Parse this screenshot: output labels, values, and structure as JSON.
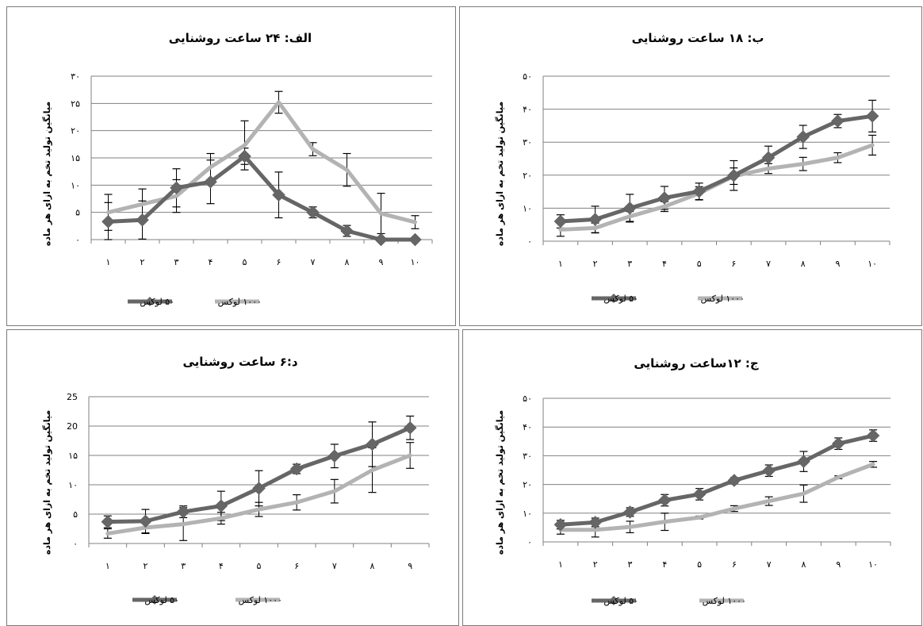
{
  "chart_data": [
    {
      "type": "line",
      "title": "الف: ۲۴ ساعت روشنایی",
      "ylabel": "میانگین تولید تخم به ازای هر ماده",
      "ylim": [
        0,
        30
      ],
      "yticks": [
        "۰",
        "۵",
        "۱۰",
        "۱۵",
        "۲۰",
        "۲۵",
        "۳۰"
      ],
      "categories": [
        "۱",
        "۲",
        "۳",
        "۴",
        "۵",
        "۶",
        "۷",
        "۸",
        "۹",
        "۱۰"
      ],
      "series": [
        {
          "name": "۵۰ لوکس",
          "color": "#666666",
          "marker": "diamond",
          "values": [
            3.3,
            3.6,
            9.5,
            10.6,
            15.3,
            8.2,
            5.0,
            1.6,
            0.0,
            0.0
          ],
          "err": [
            3.5,
            3.5,
            3.5,
            4.0,
            1.5,
            4.2,
            1.0,
            1.0,
            0.0,
            0.0
          ]
        },
        {
          "name": "۱۰۰۰ لوکس",
          "color": "#b3b3b3",
          "marker": "none",
          "values": [
            5.0,
            6.5,
            8.0,
            13.3,
            17.3,
            25.2,
            16.6,
            12.8,
            4.8,
            3.2
          ],
          "err": [
            3.3,
            2.8,
            3.0,
            2.5,
            4.5,
            2.0,
            1.2,
            3.0,
            3.7,
            1.2
          ]
        }
      ],
      "legend": "bottom"
    },
    {
      "type": "line",
      "title": "ب: ۱۸ ساعت روشنایی",
      "ylabel": "میانگین تولید تخم به ازای هر ماده",
      "ylim": [
        0,
        50
      ],
      "yticks": [
        "۰",
        "۱۰",
        "۲۰",
        "۳۰",
        "۴۰",
        "۵۰"
      ],
      "categories": [
        "۱",
        "۲",
        "۳",
        "۴",
        "۵",
        "۶",
        "۷",
        "۸",
        "۹",
        "۱۰"
      ],
      "series": [
        {
          "name": "۵۰ لوکس",
          "color": "#666666",
          "marker": "diamond",
          "values": [
            6.0,
            6.6,
            10.0,
            13.1,
            15.1,
            19.9,
            25.3,
            31.6,
            36.4,
            37.9
          ],
          "err": [
            2.0,
            4.0,
            4.2,
            3.5,
            2.5,
            4.5,
            3.5,
            3.5,
            2.0,
            4.8
          ]
        },
        {
          "name": "۱۰۰۰ لوکس",
          "color": "#b3b3b3",
          "marker": "none",
          "values": [
            3.5,
            4.0,
            7.5,
            10.5,
            14.5,
            19.7,
            22.0,
            23.4,
            25.3,
            29.1
          ],
          "err": [
            2.0,
            1.5,
            1.5,
            1.5,
            2.0,
            2.5,
            1.5,
            2.0,
            1.5,
            3.0
          ]
        }
      ],
      "legend": "bottom"
    },
    {
      "type": "line",
      "title": "د:۶ ساعت روشنایی",
      "ylabel": "میانگین تولید تخم به ازای هر ماده",
      "ylim": [
        0,
        25
      ],
      "yticks": [
        "۰",
        "۵",
        "۱۰",
        "۱۵",
        "20",
        "25"
      ],
      "categories": [
        "۱",
        "۲",
        "۳",
        "۴",
        "۵",
        "۶",
        "۷",
        "۸",
        "۹"
      ],
      "series": [
        {
          "name": "۵۰ لوکس",
          "color": "#666666",
          "marker": "diamond",
          "values": [
            3.7,
            3.8,
            5.4,
            6.4,
            9.4,
            12.7,
            14.9,
            16.9,
            19.7
          ],
          "err": [
            1.0,
            2.0,
            1.0,
            2.5,
            3.0,
            0.8,
            2.0,
            3.8,
            2.0
          ]
        },
        {
          "name": "۱۰۰۰ لوکس",
          "color": "#b3b3b3",
          "marker": "none",
          "values": [
            1.7,
            2.7,
            3.3,
            4.3,
            5.8,
            7.0,
            8.9,
            12.5,
            15.0
          ],
          "err": [
            0.8,
            1.0,
            2.8,
            1.0,
            1.2,
            1.3,
            2.0,
            3.8,
            2.2
          ]
        }
      ],
      "legend": "bottom"
    },
    {
      "type": "line",
      "title": "ج: ۱۲ساعت روشنایی",
      "ylabel": "میانگین تولید تخم به ازای هر ماده",
      "ylim": [
        0,
        50
      ],
      "yticks": [
        "۰",
        "۱۰",
        "۲۰",
        "۳۰",
        "۴۰",
        "۵۰"
      ],
      "categories": [
        "۱",
        "۲",
        "۳",
        "۴",
        "۵",
        "۶",
        "۷",
        "۸",
        "۹",
        "۱۰"
      ],
      "series": [
        {
          "name": "۵۰ لوکس",
          "color": "#666666",
          "marker": "diamond",
          "values": [
            6.0,
            6.8,
            10.4,
            14.5,
            16.6,
            21.4,
            24.8,
            28.0,
            34.2,
            37.0
          ],
          "err": [
            1.5,
            1.5,
            1.5,
            2.0,
            2.0,
            1.0,
            2.0,
            3.5,
            2.0,
            2.0
          ]
        },
        {
          "name": "۱۰۰۰ لوکس",
          "color": "#b3b3b3",
          "marker": "none",
          "values": [
            4.2,
            4.2,
            5.2,
            7.0,
            8.5,
            11.6,
            14.2,
            16.8,
            22.5,
            27.0
          ],
          "err": [
            1.5,
            2.5,
            2.0,
            3.0,
            0.5,
            1.0,
            1.5,
            3.0,
            0.5,
            1.0
          ]
        }
      ],
      "legend": "bottom"
    }
  ]
}
